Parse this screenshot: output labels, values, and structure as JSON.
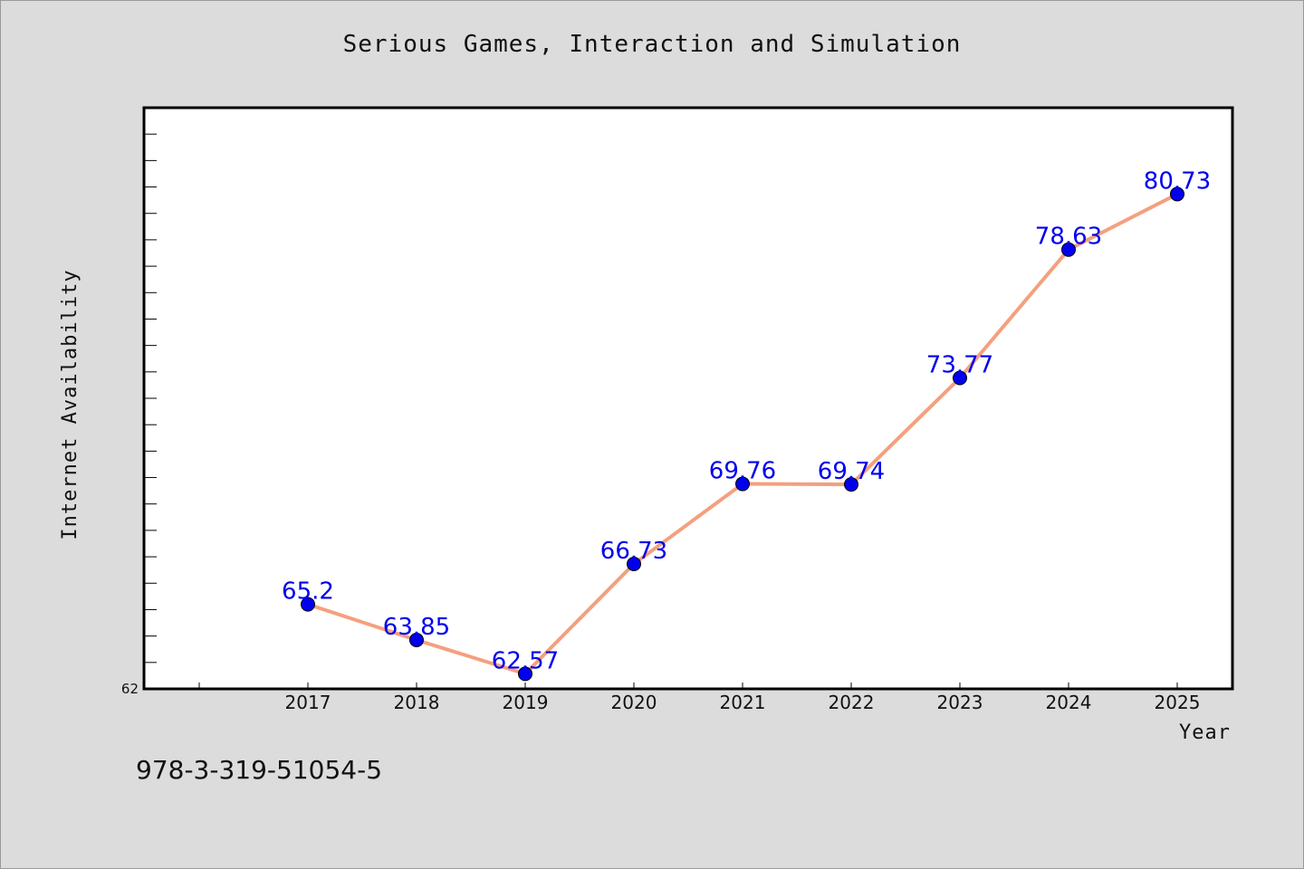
{
  "chart_data": {
    "type": "line",
    "title": "Serious Games, Interaction and Simulation",
    "xlabel": "Year",
    "ylabel": "Internet Availability",
    "categories": [
      "2017",
      "2018",
      "2019",
      "2020",
      "2021",
      "2022",
      "2023",
      "2024",
      "2025"
    ],
    "series": [
      {
        "values": [
          65.2,
          63.85,
          62.57,
          66.73,
          69.76,
          69.74,
          73.77,
          78.63,
          80.73
        ],
        "labels": [
          "65.2",
          "63.85",
          "62.57",
          "66.73",
          "69.76",
          "69.74",
          "73.77",
          "78.63",
          "80.73"
        ]
      }
    ],
    "ylim": [
      62,
      84
    ],
    "yticks_labeled": [
      "62"
    ],
    "grid": false,
    "legend": "none",
    "colors": {
      "line": "#f4a07e",
      "marker": "#0000ee",
      "label": "#0000ee",
      "background": "#dcdcdc",
      "plot_bg": "#ffffff"
    }
  },
  "footer": {
    "isbn": "978-3-319-51054-5"
  }
}
